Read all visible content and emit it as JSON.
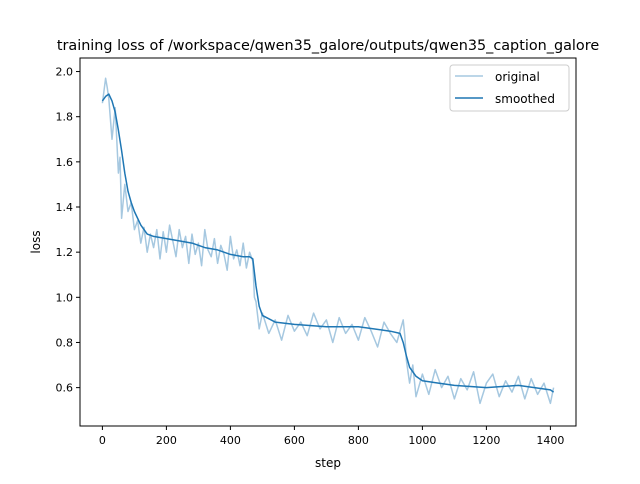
{
  "chart_data": {
    "type": "line",
    "title": "training loss of /workspace/qwen35_galore/outputs/qwen35_caption_galore",
    "xlabel": "step",
    "ylabel": "loss",
    "xlim": [
      -70,
      1480
    ],
    "ylim": [
      0.43,
      2.06
    ],
    "xticks": [
      0,
      200,
      400,
      600,
      800,
      1000,
      1200,
      1400
    ],
    "yticks": [
      0.6,
      0.8,
      1.0,
      1.2,
      1.4,
      1.6,
      1.8,
      2.0
    ],
    "grid": false,
    "legend_position": "top-right",
    "series": [
      {
        "name": "original",
        "color": "#a6c8e0",
        "x": [
          0,
          10,
          15,
          20,
          30,
          40,
          50,
          55,
          60,
          70,
          80,
          90,
          100,
          110,
          120,
          130,
          140,
          150,
          160,
          170,
          180,
          190,
          200,
          210,
          220,
          230,
          240,
          250,
          260,
          270,
          280,
          290,
          300,
          310,
          320,
          330,
          340,
          350,
          360,
          370,
          380,
          390,
          400,
          410,
          420,
          430,
          440,
          450,
          460,
          470,
          475,
          480,
          490,
          500,
          520,
          540,
          560,
          580,
          600,
          620,
          640,
          660,
          680,
          700,
          720,
          740,
          760,
          780,
          800,
          820,
          840,
          860,
          880,
          900,
          920,
          940,
          945,
          950,
          960,
          970,
          980,
          1000,
          1020,
          1040,
          1060,
          1080,
          1100,
          1120,
          1140,
          1160,
          1180,
          1200,
          1220,
          1240,
          1260,
          1280,
          1300,
          1320,
          1340,
          1360,
          1380,
          1400,
          1410
        ],
        "y": [
          1.86,
          1.97,
          1.93,
          1.88,
          1.7,
          1.84,
          1.55,
          1.62,
          1.35,
          1.5,
          1.38,
          1.42,
          1.3,
          1.34,
          1.24,
          1.31,
          1.2,
          1.28,
          1.22,
          1.3,
          1.17,
          1.29,
          1.2,
          1.32,
          1.25,
          1.18,
          1.3,
          1.22,
          1.27,
          1.15,
          1.28,
          1.19,
          1.24,
          1.14,
          1.3,
          1.21,
          1.18,
          1.26,
          1.15,
          1.23,
          1.19,
          1.12,
          1.27,
          1.17,
          1.21,
          1.14,
          1.24,
          1.13,
          1.2,
          1.16,
          1.0,
          0.98,
          0.86,
          0.93,
          0.84,
          0.9,
          0.81,
          0.92,
          0.85,
          0.89,
          0.83,
          0.93,
          0.86,
          0.9,
          0.8,
          0.91,
          0.84,
          0.88,
          0.81,
          0.91,
          0.85,
          0.78,
          0.89,
          0.84,
          0.8,
          0.9,
          0.83,
          0.72,
          0.62,
          0.7,
          0.56,
          0.66,
          0.57,
          0.68,
          0.6,
          0.65,
          0.55,
          0.64,
          0.59,
          0.67,
          0.53,
          0.62,
          0.66,
          0.56,
          0.63,
          0.58,
          0.65,
          0.55,
          0.64,
          0.57,
          0.62,
          0.53,
          0.6
        ]
      },
      {
        "name": "smoothed",
        "color": "#1f77b4",
        "x": [
          0,
          10,
          20,
          30,
          40,
          50,
          60,
          70,
          80,
          90,
          100,
          120,
          140,
          160,
          200,
          240,
          280,
          320,
          360,
          400,
          440,
          460,
          470,
          480,
          490,
          500,
          540,
          600,
          700,
          800,
          900,
          930,
          940,
          950,
          960,
          980,
          1000,
          1050,
          1100,
          1200,
          1300,
          1400,
          1410
        ],
        "y": [
          1.87,
          1.89,
          1.9,
          1.87,
          1.82,
          1.74,
          1.65,
          1.55,
          1.47,
          1.42,
          1.38,
          1.32,
          1.28,
          1.27,
          1.26,
          1.25,
          1.24,
          1.22,
          1.21,
          1.19,
          1.18,
          1.18,
          1.17,
          1.05,
          0.96,
          0.92,
          0.89,
          0.88,
          0.87,
          0.87,
          0.85,
          0.84,
          0.8,
          0.74,
          0.69,
          0.65,
          0.63,
          0.62,
          0.61,
          0.6,
          0.61,
          0.59,
          0.58
        ]
      }
    ]
  }
}
